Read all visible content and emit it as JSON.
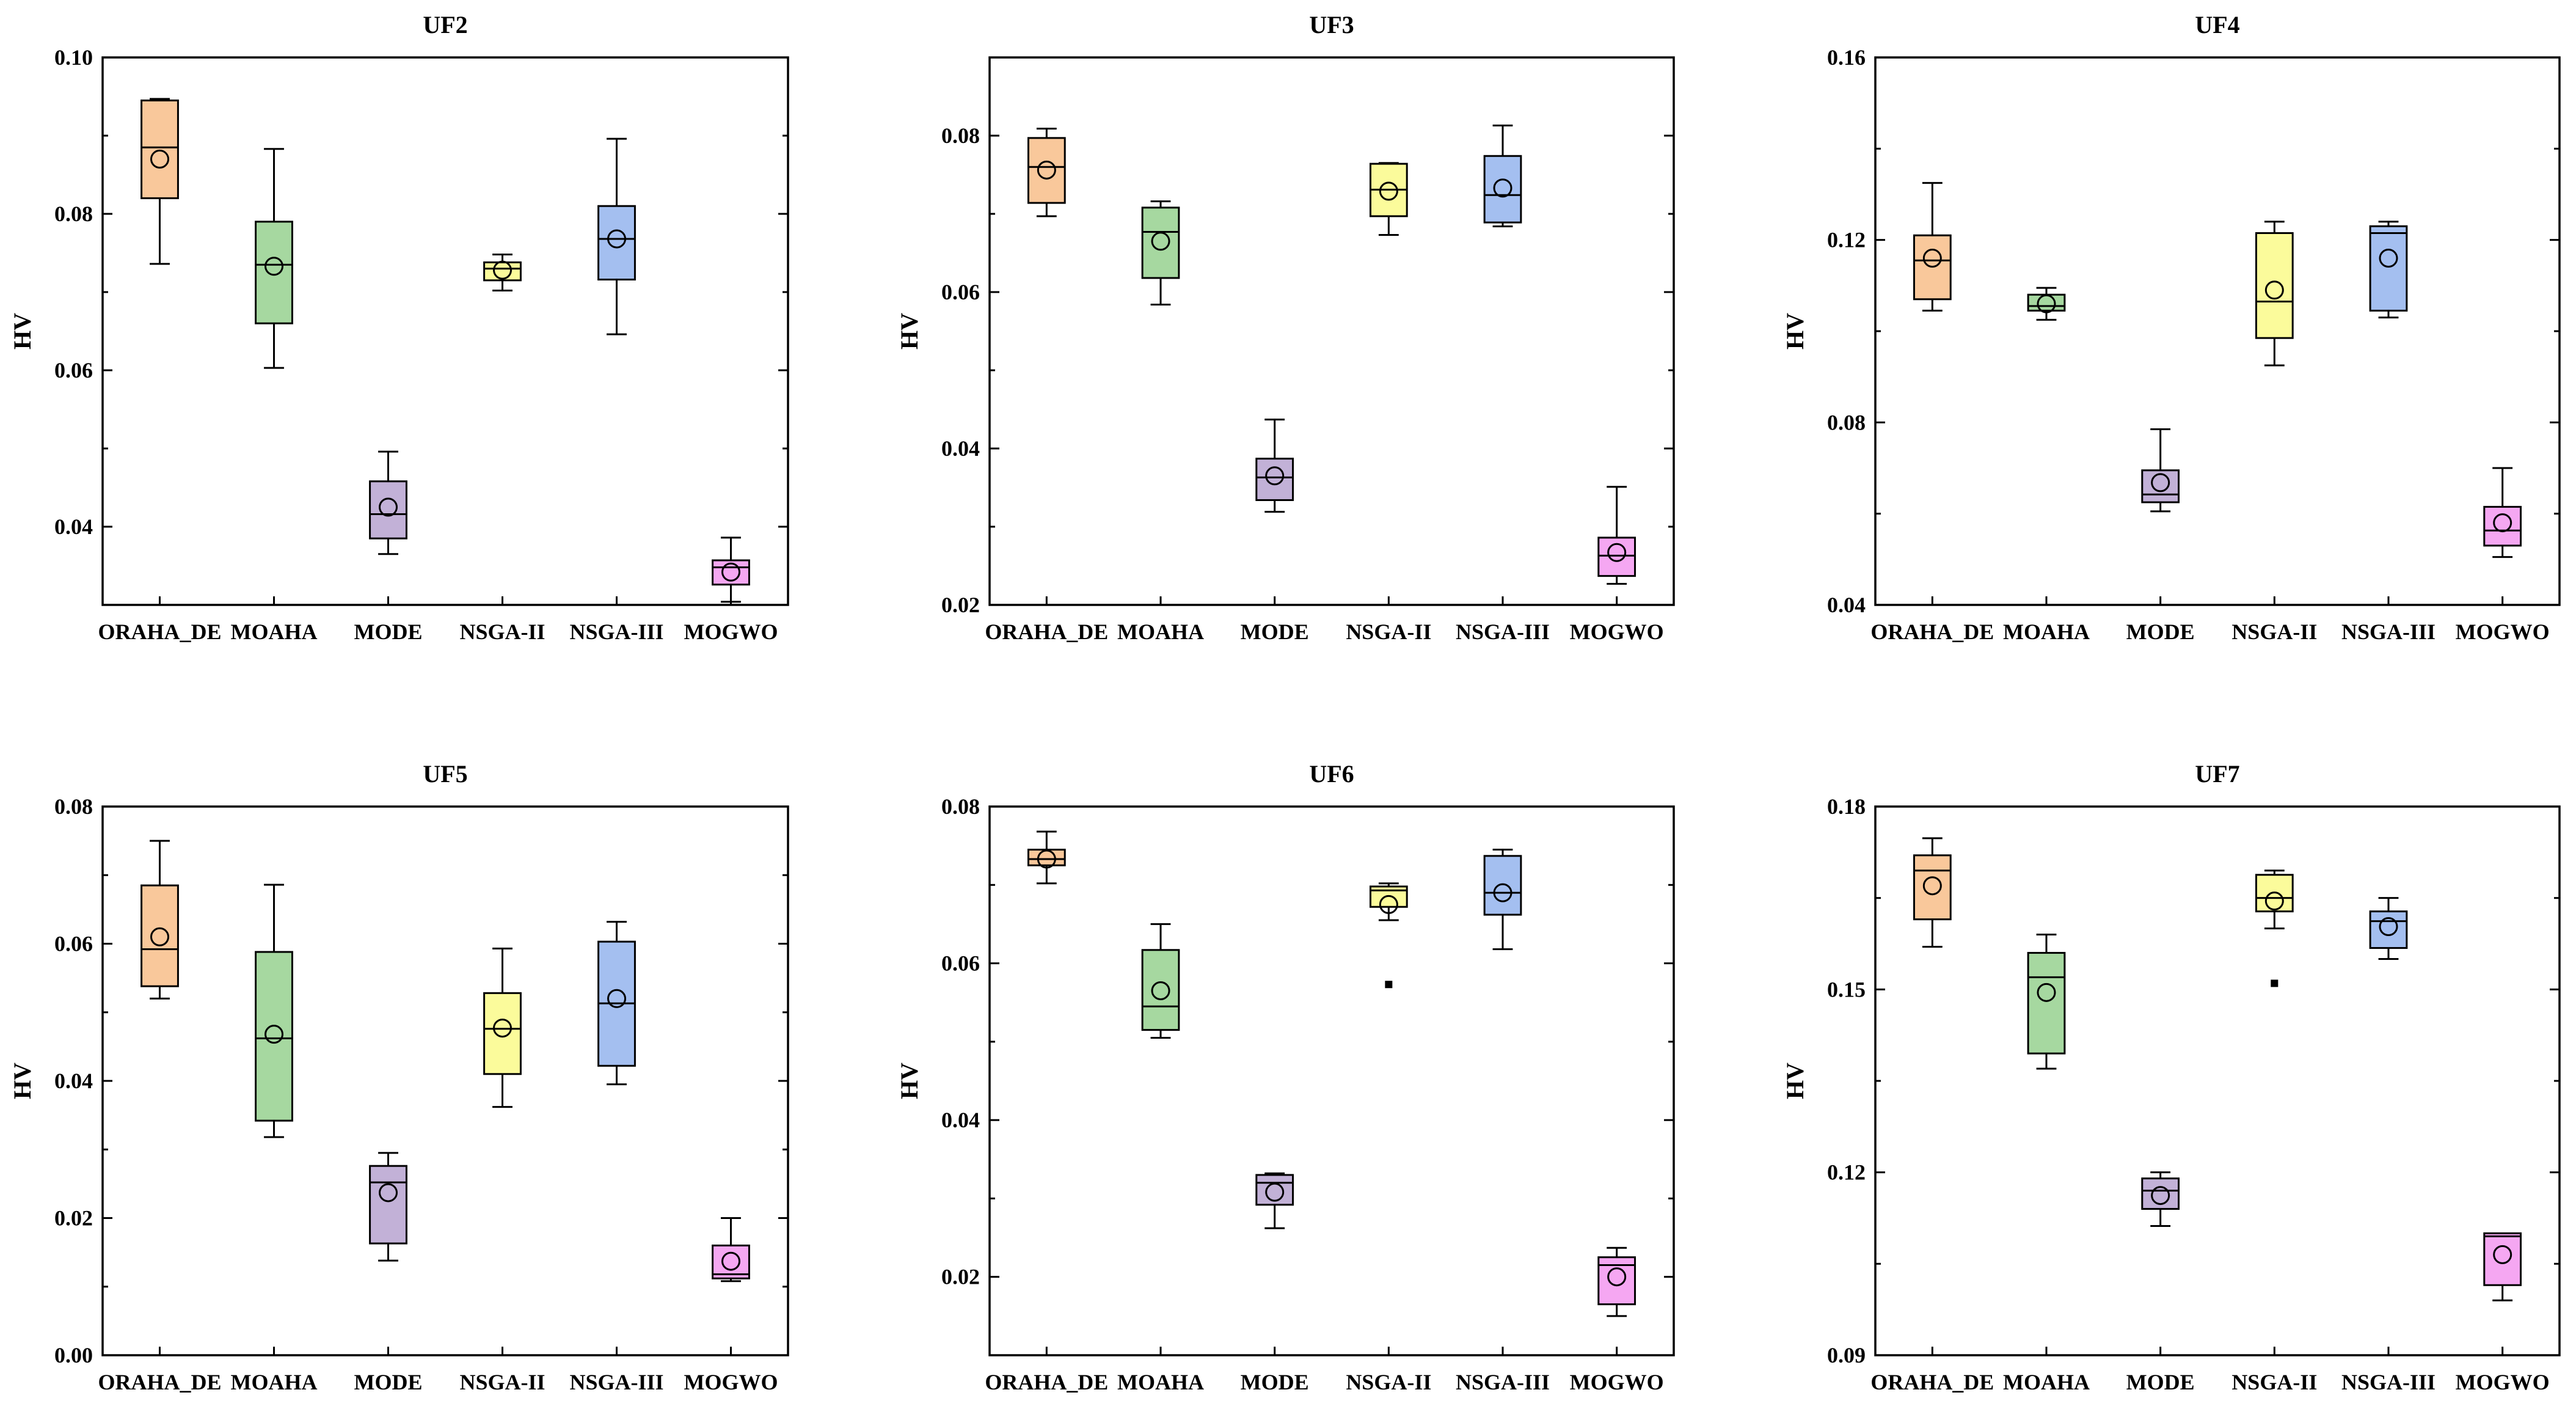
{
  "figure_ylabel": "HV",
  "colors": {
    "ORAHA_DE": "#f9c89b",
    "MOAHA": "#a6d8a0",
    "MODE": "#c2b1d7",
    "NSGA-II": "#fbfb9b",
    "NSGA-III": "#a4bff0",
    "MOGWO": "#f5a7f2"
  },
  "chart_data": [
    {
      "type": "box",
      "title": "UF2",
      "ylabel": "HV",
      "categories": [
        "ORAHA_DE",
        "MOAHA",
        "MODE",
        "NSGA-II",
        "NSGA-III",
        "MOGWO"
      ],
      "ylim": [
        0.03,
        0.1
      ],
      "yticks": [
        "0.04",
        "0.06",
        "0.08",
        "0.10"
      ],
      "ytick_values": [
        0.04,
        0.06,
        0.08,
        0.1
      ],
      "boxes": [
        {
          "whisker_low": 0.0736,
          "q1": 0.082,
          "median": 0.0885,
          "q3": 0.0945,
          "whisker_high": 0.0947,
          "mean": 0.087,
          "outliers": []
        },
        {
          "whisker_low": 0.0603,
          "q1": 0.066,
          "median": 0.0735,
          "q3": 0.079,
          "whisker_high": 0.0883,
          "mean": 0.0733,
          "outliers": []
        },
        {
          "whisker_low": 0.0365,
          "q1": 0.0385,
          "median": 0.0416,
          "q3": 0.0458,
          "whisker_high": 0.0496,
          "mean": 0.0425,
          "outliers": []
        },
        {
          "whisker_low": 0.0702,
          "q1": 0.0715,
          "median": 0.073,
          "q3": 0.0738,
          "whisker_high": 0.0748,
          "mean": 0.0728,
          "outliers": []
        },
        {
          "whisker_low": 0.0646,
          "q1": 0.0716,
          "median": 0.0768,
          "q3": 0.081,
          "whisker_high": 0.0896,
          "mean": 0.0768,
          "outliers": []
        },
        {
          "whisker_low": 0.0304,
          "q1": 0.0326,
          "median": 0.0348,
          "q3": 0.0357,
          "whisker_high": 0.0386,
          "mean": 0.0342,
          "outliers": []
        }
      ]
    },
    {
      "type": "box",
      "title": "UF3",
      "ylabel": "HV",
      "categories": [
        "ORAHA_DE",
        "MOAHA",
        "MODE",
        "NSGA-II",
        "NSGA-III",
        "MOGWO"
      ],
      "ylim": [
        0.02,
        0.09
      ],
      "yticks": [
        "0.02",
        "0.04",
        "0.06",
        "0.08"
      ],
      "ytick_values": [
        0.02,
        0.04,
        0.06,
        0.08
      ],
      "boxes": [
        {
          "whisker_low": 0.0697,
          "q1": 0.0714,
          "median": 0.076,
          "q3": 0.0797,
          "whisker_high": 0.0809,
          "mean": 0.0756,
          "outliers": []
        },
        {
          "whisker_low": 0.0584,
          "q1": 0.0618,
          "median": 0.0677,
          "q3": 0.0708,
          "whisker_high": 0.0716,
          "mean": 0.0665,
          "outliers": []
        },
        {
          "whisker_low": 0.0319,
          "q1": 0.0334,
          "median": 0.0363,
          "q3": 0.0387,
          "whisker_high": 0.0437,
          "mean": 0.0365,
          "outliers": []
        },
        {
          "whisker_low": 0.0673,
          "q1": 0.0697,
          "median": 0.0731,
          "q3": 0.0764,
          "whisker_high": 0.0765,
          "mean": 0.0729,
          "outliers": []
        },
        {
          "whisker_low": 0.0684,
          "q1": 0.0689,
          "median": 0.0724,
          "q3": 0.0774,
          "whisker_high": 0.0813,
          "mean": 0.0733,
          "outliers": []
        },
        {
          "whisker_low": 0.0227,
          "q1": 0.0237,
          "median": 0.0263,
          "q3": 0.0286,
          "whisker_high": 0.0351,
          "mean": 0.0267,
          "outliers": []
        }
      ]
    },
    {
      "type": "box",
      "title": "UF4",
      "ylabel": "HV",
      "categories": [
        "ORAHA_DE",
        "MOAHA",
        "MODE",
        "NSGA-II",
        "NSGA-III",
        "MOGWO"
      ],
      "ylim": [
        0.04,
        0.16
      ],
      "yticks": [
        "0.04",
        "0.08",
        "0.12",
        "0.16"
      ],
      "ytick_values": [
        0.04,
        0.08,
        0.12,
        0.16
      ],
      "boxes": [
        {
          "whisker_low": 0.1045,
          "q1": 0.107,
          "median": 0.1155,
          "q3": 0.121,
          "whisker_high": 0.1325,
          "mean": 0.116,
          "outliers": []
        },
        {
          "whisker_low": 0.1025,
          "q1": 0.1045,
          "median": 0.1055,
          "q3": 0.108,
          "whisker_high": 0.1095,
          "mean": 0.106,
          "outliers": []
        },
        {
          "whisker_low": 0.0605,
          "q1": 0.0625,
          "median": 0.0642,
          "q3": 0.0695,
          "whisker_high": 0.0785,
          "mean": 0.0668,
          "outliers": []
        },
        {
          "whisker_low": 0.0925,
          "q1": 0.0985,
          "median": 0.1065,
          "q3": 0.1215,
          "whisker_high": 0.124,
          "mean": 0.109,
          "outliers": []
        },
        {
          "whisker_low": 0.103,
          "q1": 0.1045,
          "median": 0.1215,
          "q3": 0.123,
          "whisker_high": 0.124,
          "mean": 0.116,
          "outliers": []
        },
        {
          "whisker_low": 0.0505,
          "q1": 0.053,
          "median": 0.0563,
          "q3": 0.0615,
          "whisker_high": 0.07,
          "mean": 0.058,
          "outliers": []
        }
      ]
    },
    {
      "type": "box",
      "title": "UF5",
      "ylabel": "HV",
      "categories": [
        "ORAHA_DE",
        "MOAHA",
        "MODE",
        "NSGA-II",
        "NSGA-III",
        "MOGWO"
      ],
      "ylim": [
        0.0,
        0.08
      ],
      "yticks": [
        "0.00",
        "0.02",
        "0.04",
        "0.06",
        "0.08"
      ],
      "ytick_values": [
        0.0,
        0.02,
        0.04,
        0.06,
        0.08
      ],
      "boxes": [
        {
          "whisker_low": 0.052,
          "q1": 0.0538,
          "median": 0.0592,
          "q3": 0.0685,
          "whisker_high": 0.075,
          "mean": 0.061,
          "outliers": []
        },
        {
          "whisker_low": 0.0318,
          "q1": 0.0342,
          "median": 0.0462,
          "q3": 0.0588,
          "whisker_high": 0.0686,
          "mean": 0.0468,
          "outliers": []
        },
        {
          "whisker_low": 0.0138,
          "q1": 0.0163,
          "median": 0.0252,
          "q3": 0.0276,
          "whisker_high": 0.0295,
          "mean": 0.0237,
          "outliers": []
        },
        {
          "whisker_low": 0.0362,
          "q1": 0.041,
          "median": 0.0476,
          "q3": 0.0528,
          "whisker_high": 0.0593,
          "mean": 0.0477,
          "outliers": []
        },
        {
          "whisker_low": 0.0395,
          "q1": 0.0422,
          "median": 0.0513,
          "q3": 0.0603,
          "whisker_high": 0.0632,
          "mean": 0.052,
          "outliers": []
        },
        {
          "whisker_low": 0.0108,
          "q1": 0.0112,
          "median": 0.0118,
          "q3": 0.016,
          "whisker_high": 0.02,
          "mean": 0.0137,
          "outliers": []
        }
      ]
    },
    {
      "type": "box",
      "title": "UF6",
      "ylabel": "HV",
      "categories": [
        "ORAHA_DE",
        "MOAHA",
        "MODE",
        "NSGA-II",
        "NSGA-III",
        "MOGWO"
      ],
      "ylim": [
        0.01,
        0.08
      ],
      "yticks": [
        "0.02",
        "0.04",
        "0.06",
        "0.08"
      ],
      "ytick_values": [
        0.02,
        0.04,
        0.06,
        0.08
      ],
      "boxes": [
        {
          "whisker_low": 0.0702,
          "q1": 0.0725,
          "median": 0.0733,
          "q3": 0.0745,
          "whisker_high": 0.0768,
          "mean": 0.0733,
          "outliers": []
        },
        {
          "whisker_low": 0.0505,
          "q1": 0.0515,
          "median": 0.0545,
          "q3": 0.0617,
          "whisker_high": 0.065,
          "mean": 0.0565,
          "outliers": []
        },
        {
          "whisker_low": 0.0262,
          "q1": 0.0292,
          "median": 0.032,
          "q3": 0.033,
          "whisker_high": 0.0332,
          "mean": 0.0308,
          "outliers": []
        },
        {
          "whisker_low": 0.0655,
          "q1": 0.0672,
          "median": 0.0693,
          "q3": 0.0698,
          "whisker_high": 0.0702,
          "mean": 0.0675,
          "outliers": [
            0.0573
          ]
        },
        {
          "whisker_low": 0.0618,
          "q1": 0.0662,
          "median": 0.069,
          "q3": 0.0737,
          "whisker_high": 0.0745,
          "mean": 0.069,
          "outliers": []
        },
        {
          "whisker_low": 0.015,
          "q1": 0.0165,
          "median": 0.0215,
          "q3": 0.0225,
          "whisker_high": 0.0237,
          "mean": 0.02,
          "outliers": []
        }
      ]
    },
    {
      "type": "box",
      "title": "UF7",
      "ylabel": "HV",
      "categories": [
        "ORAHA_DE",
        "MOAHA",
        "MODE",
        "NSGA-II",
        "NSGA-III",
        "MOGWO"
      ],
      "ylim": [
        0.09,
        0.18
      ],
      "yticks": [
        "0.09",
        "0.12",
        "0.15",
        "0.18"
      ],
      "ytick_values": [
        0.09,
        0.12,
        0.15,
        0.18
      ],
      "boxes": [
        {
          "whisker_low": 0.157,
          "q1": 0.1615,
          "median": 0.1695,
          "q3": 0.172,
          "whisker_high": 0.1748,
          "mean": 0.167,
          "outliers": []
        },
        {
          "whisker_low": 0.137,
          "q1": 0.1395,
          "median": 0.152,
          "q3": 0.156,
          "whisker_high": 0.159,
          "mean": 0.1495,
          "outliers": []
        },
        {
          "whisker_low": 0.1112,
          "q1": 0.114,
          "median": 0.117,
          "q3": 0.119,
          "whisker_high": 0.12,
          "mean": 0.1162,
          "outliers": []
        },
        {
          "whisker_low": 0.16,
          "q1": 0.1628,
          "median": 0.165,
          "q3": 0.1688,
          "whisker_high": 0.1695,
          "mean": 0.1645,
          "outliers": [
            0.151
          ]
        },
        {
          "whisker_low": 0.155,
          "q1": 0.1568,
          "median": 0.1612,
          "q3": 0.1628,
          "whisker_high": 0.165,
          "mean": 0.1603,
          "outliers": []
        },
        {
          "whisker_low": 0.099,
          "q1": 0.1015,
          "median": 0.1095,
          "q3": 0.11,
          "whisker_high": 0.11,
          "mean": 0.1065,
          "outliers": []
        }
      ]
    }
  ]
}
